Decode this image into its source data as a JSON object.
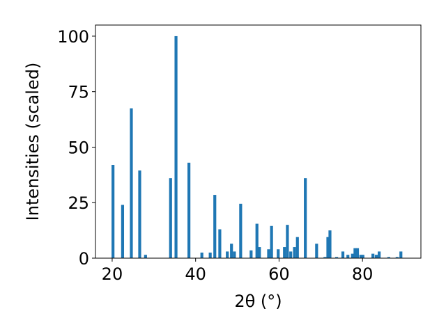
{
  "chart_data": {
    "type": "bar",
    "title": "",
    "xlabel": "2θ (°)",
    "ylabel": "Intensities (scaled)",
    "xlim": [
      16,
      94
    ],
    "ylim": [
      0,
      105
    ],
    "grid": false,
    "bar_color": "#1f77b4",
    "bar_width": 0.7,
    "x_ticks": [
      20,
      40,
      60,
      80
    ],
    "y_ticks": [
      0,
      25,
      50,
      75,
      100
    ],
    "x": [
      20.2,
      22.5,
      24.6,
      26.6,
      28.0,
      34.0,
      35.3,
      38.4,
      41.5,
      43.5,
      44.6,
      45.8,
      47.6,
      48.6,
      49.3,
      50.8,
      53.3,
      54.7,
      55.3,
      57.5,
      58.2,
      59.8,
      61.3,
      62.0,
      62.8,
      63.7,
      64.4,
      66.3,
      69.0,
      71.0,
      71.7,
      72.2,
      73.8,
      75.3,
      76.5,
      77.6,
      78.2,
      78.8,
      79.6,
      80.1,
      82.5,
      83.3,
      84.0,
      86.3,
      88.3,
      89.2
    ],
    "values": [
      42,
      24,
      67.5,
      39.5,
      1.5,
      36,
      100,
      43,
      2.5,
      2.5,
      28.5,
      13,
      3,
      6.5,
      3,
      24.5,
      3.5,
      15.5,
      5,
      4,
      14.5,
      4,
      5,
      15,
      3,
      5,
      9.5,
      36,
      6.5,
      0.5,
      9.5,
      12.5,
      0.5,
      3,
      1.5,
      2,
      4.5,
      4.5,
      1.5,
      1.5,
      2,
      1.5,
      3,
      0.5,
      0.5,
      3
    ]
  }
}
